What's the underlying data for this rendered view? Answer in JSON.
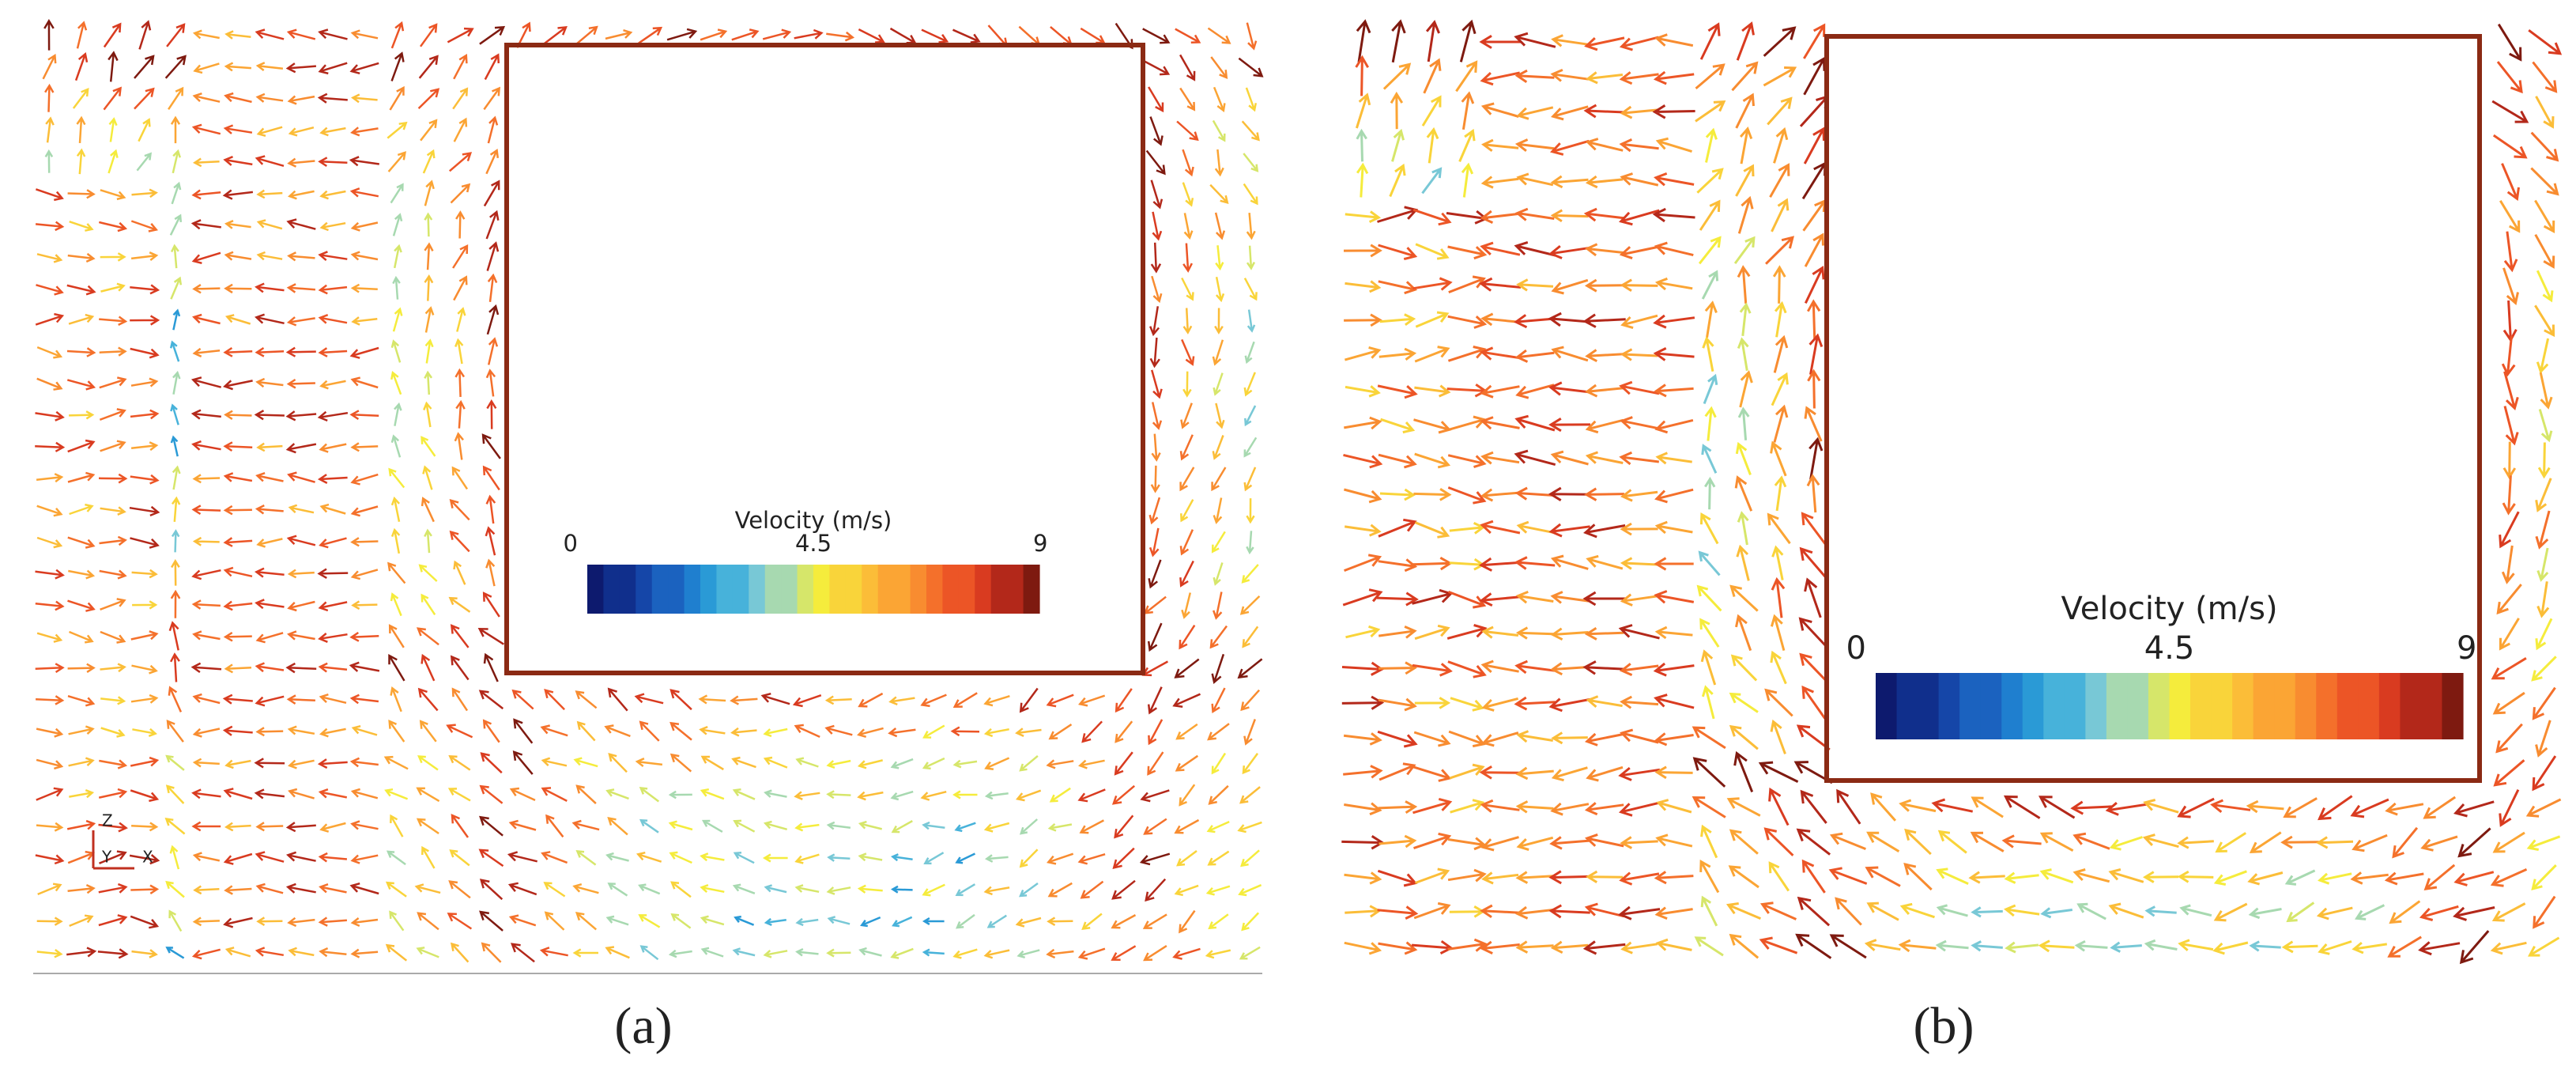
{
  "panels": [
    {
      "label": "(a)",
      "colorbar": {
        "title": "Velocity (m/s)",
        "ticks": [
          0,
          4.5,
          9
        ]
      },
      "axes": [
        "Z",
        "Y",
        "X"
      ]
    },
    {
      "label": "(b)",
      "colorbar": {
        "title": "Velocity (m/s)",
        "ticks": [
          0,
          4.5,
          9
        ]
      }
    }
  ]
}
